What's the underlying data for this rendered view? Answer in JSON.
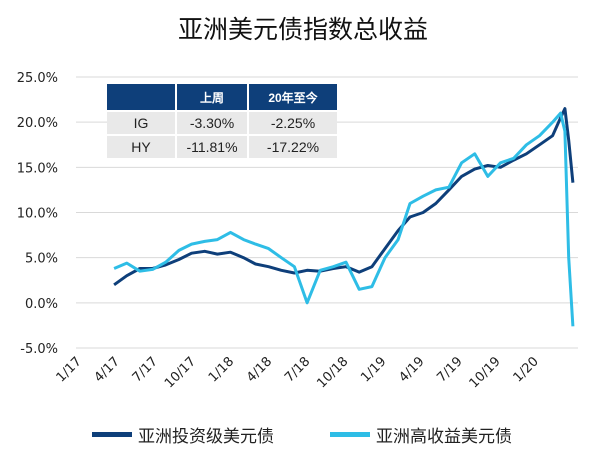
{
  "chart_data": {
    "type": "line",
    "title": "亚洲美元债指数总收益",
    "y_ticks": [
      "25.0%",
      "20.0%",
      "15.0%",
      "10.0%",
      "5.0%",
      "0.0%",
      "-5.0%"
    ],
    "ylim": [
      -5,
      25
    ],
    "x_ticks": [
      "1/17",
      "4/17",
      "7/17",
      "10/17",
      "1/18",
      "4/18",
      "7/18",
      "10/18",
      "1/19",
      "4/19",
      "7/19",
      "10/19",
      "1/20"
    ],
    "xlim": [
      "2017-01-01",
      "2020-04-01"
    ],
    "grid": true,
    "legend_position": "bottom",
    "series": [
      {
        "name": "亚洲投资级美元债",
        "color": "#0e3f7a",
        "x": [
          "2017-04-01",
          "2017-05-01",
          "2017-06-01",
          "2017-07-01",
          "2017-08-01",
          "2017-09-01",
          "2017-10-01",
          "2017-11-01",
          "2017-12-01",
          "2018-01-01",
          "2018-02-01",
          "2018-03-01",
          "2018-04-01",
          "2018-05-01",
          "2018-06-01",
          "2018-07-01",
          "2018-08-01",
          "2018-09-01",
          "2018-10-01",
          "2018-11-01",
          "2018-12-01",
          "2019-01-01",
          "2019-02-01",
          "2019-03-01",
          "2019-04-01",
          "2019-05-01",
          "2019-06-01",
          "2019-07-01",
          "2019-08-01",
          "2019-09-01",
          "2019-10-01",
          "2019-11-01",
          "2019-12-01",
          "2020-01-01",
          "2020-02-01",
          "2020-02-20",
          "2020-03-01",
          "2020-03-10",
          "2020-03-20"
        ],
        "y": [
          2.0,
          3.0,
          3.8,
          3.8,
          4.2,
          4.8,
          5.5,
          5.7,
          5.4,
          5.6,
          5.0,
          4.3,
          4.0,
          3.6,
          3.3,
          3.6,
          3.5,
          3.8,
          4.0,
          3.4,
          4.0,
          6.0,
          8.0,
          9.5,
          10.0,
          11.0,
          12.5,
          14.0,
          14.8,
          15.2,
          15.0,
          15.8,
          16.5,
          17.5,
          18.5,
          20.5,
          21.5,
          18.0,
          13.3
        ]
      },
      {
        "name": "亚洲高收益美元债",
        "color": "#2ebde6",
        "x": [
          "2017-04-01",
          "2017-05-01",
          "2017-06-01",
          "2017-07-01",
          "2017-08-01",
          "2017-09-01",
          "2017-10-01",
          "2017-11-01",
          "2017-12-01",
          "2018-01-01",
          "2018-02-01",
          "2018-03-01",
          "2018-04-01",
          "2018-05-01",
          "2018-06-01",
          "2018-07-01",
          "2018-08-01",
          "2018-09-01",
          "2018-10-01",
          "2018-11-01",
          "2018-12-01",
          "2019-01-01",
          "2019-02-01",
          "2019-03-01",
          "2019-04-01",
          "2019-05-01",
          "2019-06-01",
          "2019-07-01",
          "2019-08-01",
          "2019-09-01",
          "2019-10-01",
          "2019-11-01",
          "2019-12-01",
          "2020-01-01",
          "2020-02-01",
          "2020-02-20",
          "2020-03-01",
          "2020-03-10",
          "2020-03-20"
        ],
        "y": [
          3.8,
          4.4,
          3.5,
          3.7,
          4.5,
          5.8,
          6.5,
          6.8,
          7.0,
          7.8,
          7.0,
          6.5,
          6.0,
          5.0,
          4.0,
          0.0,
          3.6,
          4.0,
          4.5,
          1.5,
          1.8,
          5.0,
          7.0,
          11.0,
          11.8,
          12.5,
          12.8,
          15.5,
          16.5,
          14.0,
          15.5,
          16.0,
          17.5,
          18.5,
          20.0,
          21.0,
          19.0,
          5.0,
          -2.6
        ]
      }
    ],
    "table": {
      "headers": [
        "",
        "上周",
        "20年至今"
      ],
      "rows": [
        [
          "IG",
          "-3.30%",
          "-2.25%"
        ],
        [
          "HY",
          "-11.81%",
          "-17.22%"
        ]
      ]
    }
  }
}
